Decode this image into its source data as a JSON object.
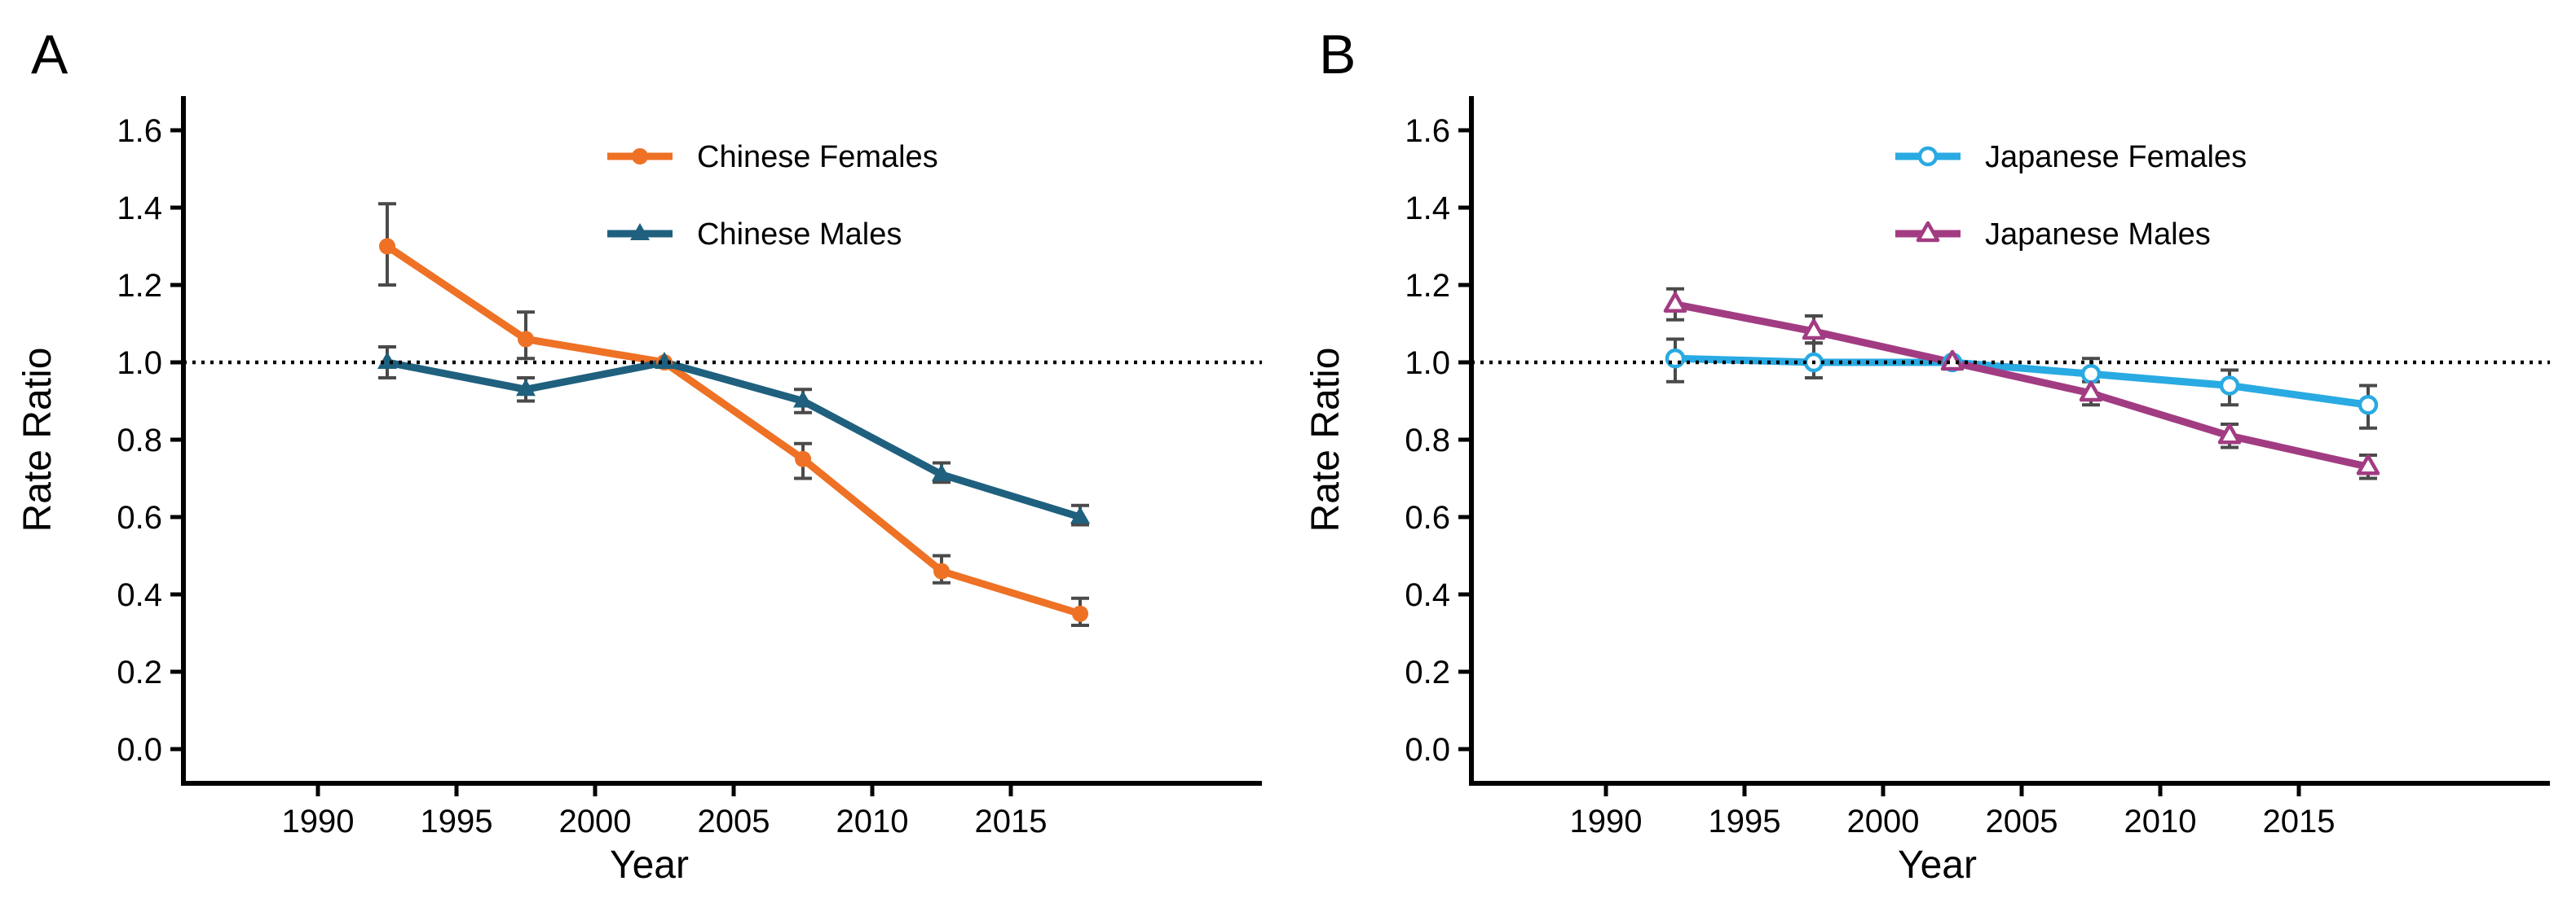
{
  "figure": {
    "background": "#ffffff",
    "error_bar_color": "#4a4a4a",
    "reference_line_color": "#000000",
    "axis_color": "#000000",
    "text_color": "#000000"
  },
  "chart_data": [
    {
      "type": "line",
      "panel_label": "A",
      "xlabel": "Year",
      "ylabel": "Rate Ratio",
      "x_ticks": [
        1990,
        1995,
        2000,
        2005,
        2010,
        2015
      ],
      "x_tick_labels": [
        "1990",
        "1995",
        "2000",
        "2005",
        "2010",
        "2015"
      ],
      "y_ticks": [
        0.0,
        0.2,
        0.4,
        0.6,
        0.8,
        1.0,
        1.2,
        1.4,
        1.6
      ],
      "y_tick_labels": [
        "0.0",
        "0.2",
        "0.4",
        "0.6",
        "0.8",
        "1.0",
        "1.2",
        "1.4",
        "1.6"
      ],
      "xlim": [
        1985,
        2024
      ],
      "ylim": [
        0.0,
        1.65
      ],
      "grid": false,
      "legend_position": "inside-top-center",
      "reference_line": {
        "y": 1.0,
        "style": "dotted"
      },
      "x": [
        1992.5,
        1997.5,
        2002.5,
        2007.5,
        2012.5,
        2017.5
      ],
      "series": [
        {
          "name": "Chinese Females",
          "color": "#EE7125",
          "marker": "circle",
          "marker_fill": "solid",
          "values": [
            1.3,
            1.06,
            1.0,
            0.75,
            0.46,
            0.35
          ],
          "ci_low": [
            1.2,
            1.01,
            1.0,
            0.7,
            0.43,
            0.32
          ],
          "ci_high": [
            1.41,
            1.13,
            1.0,
            0.79,
            0.5,
            0.39
          ]
        },
        {
          "name": "Chinese Males",
          "color": "#1F607E",
          "marker": "triangle",
          "marker_fill": "solid",
          "values": [
            1.0,
            0.93,
            1.0,
            0.9,
            0.71,
            0.6
          ],
          "ci_low": [
            0.96,
            0.9,
            1.0,
            0.87,
            0.69,
            0.58
          ],
          "ci_high": [
            1.04,
            0.96,
            1.0,
            0.93,
            0.74,
            0.63
          ]
        }
      ]
    },
    {
      "type": "line",
      "panel_label": "B",
      "xlabel": "Year",
      "ylabel": "Rate Ratio",
      "x_ticks": [
        1990,
        1995,
        2000,
        2005,
        2010,
        2015
      ],
      "x_tick_labels": [
        "1990",
        "1995",
        "2000",
        "2005",
        "2010",
        "2015"
      ],
      "y_ticks": [
        0.0,
        0.2,
        0.4,
        0.6,
        0.8,
        1.0,
        1.2,
        1.4,
        1.6
      ],
      "y_tick_labels": [
        "0.0",
        "0.2",
        "0.4",
        "0.6",
        "0.8",
        "1.0",
        "1.2",
        "1.4",
        "1.6"
      ],
      "xlim": [
        1985,
        2024
      ],
      "ylim": [
        0.0,
        1.65
      ],
      "grid": false,
      "legend_position": "inside-top-center",
      "reference_line": {
        "y": 1.0,
        "style": "dotted"
      },
      "x": [
        1992.5,
        1997.5,
        2002.5,
        2007.5,
        2012.5,
        2017.5
      ],
      "series": [
        {
          "name": "Japanese Females",
          "color": "#29AAE2",
          "marker": "circle",
          "marker_fill": "open",
          "values": [
            1.01,
            1.0,
            1.0,
            0.97,
            0.94,
            0.89
          ],
          "ci_low": [
            0.95,
            0.96,
            1.0,
            0.92,
            0.89,
            0.83
          ],
          "ci_high": [
            1.06,
            1.05,
            1.0,
            1.01,
            0.98,
            0.94
          ]
        },
        {
          "name": "Japanese Males",
          "color": "#A23C82",
          "marker": "triangle",
          "marker_fill": "open",
          "values": [
            1.15,
            1.08,
            1.0,
            0.92,
            0.81,
            0.73
          ],
          "ci_low": [
            1.11,
            1.05,
            1.0,
            0.89,
            0.78,
            0.7
          ],
          "ci_high": [
            1.19,
            1.12,
            1.0,
            0.95,
            0.84,
            0.76
          ]
        }
      ]
    }
  ]
}
